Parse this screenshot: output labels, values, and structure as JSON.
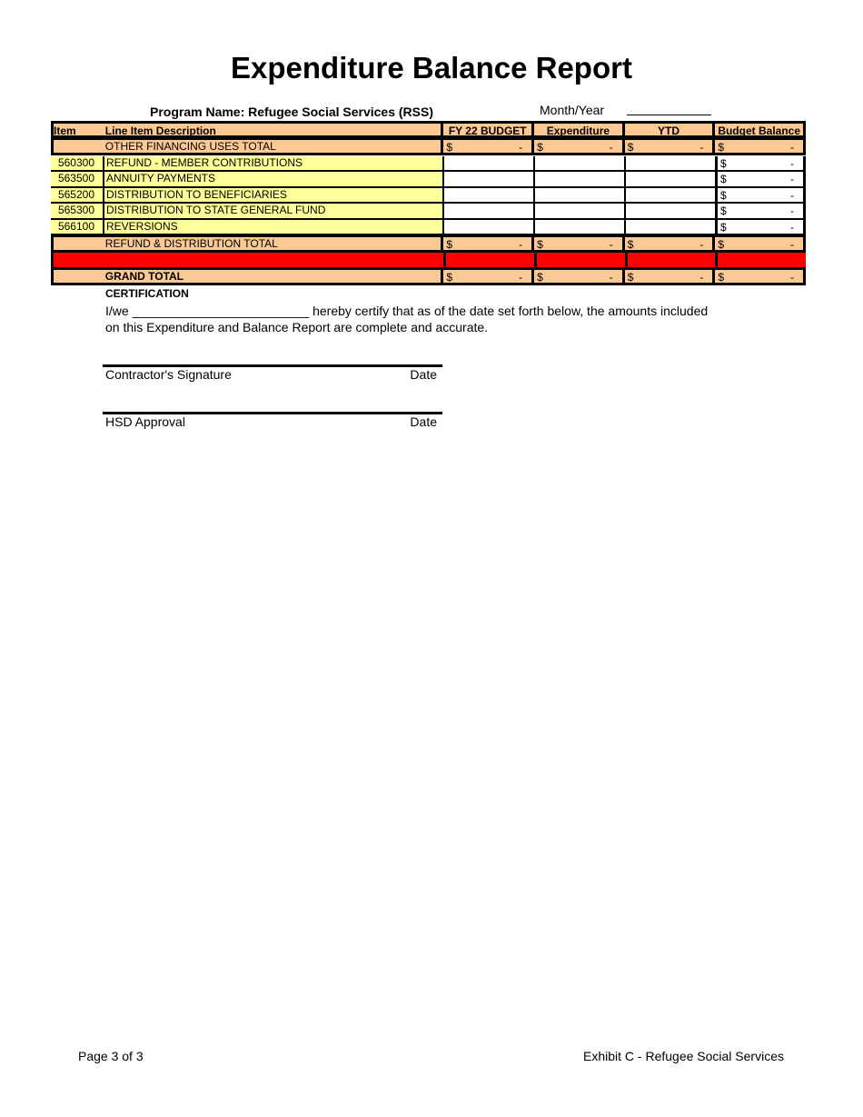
{
  "title": "Expenditure Balance Report",
  "program_name": "Program Name: Refugee Social Services (RSS)",
  "month_year_label": "Month/Year",
  "table": {
    "headers": [
      "Item",
      "Line Item Description",
      "FY 22 BUDGET",
      "Expenditure",
      "YTD",
      "Budget Balance"
    ],
    "other_financing_total": {
      "label": "OTHER FINANCING USES TOTAL",
      "values": [
        "-",
        "-",
        "-",
        "-"
      ]
    },
    "line_items": [
      {
        "item": "560300",
        "description": "REFUND - MEMBER CONTRIBUTIONS",
        "budget_balance": "-"
      },
      {
        "item": "563500",
        "description": "ANNUITY PAYMENTS",
        "budget_balance": "-"
      },
      {
        "item": "565200",
        "description": "DISTRIBUTION TO BENEFICIARIES",
        "budget_balance": "-"
      },
      {
        "item": "565300",
        "description": "DISTRIBUTION TO STATE GENERAL FUND",
        "budget_balance": "-"
      },
      {
        "item": "566100",
        "description": "REVERSIONS",
        "budget_balance": "-"
      }
    ],
    "refund_total": {
      "label": "REFUND & DISTRIBUTION TOTAL",
      "values": [
        "-",
        "-",
        "-",
        "-"
      ]
    },
    "grand_total": {
      "label": "GRAND TOTAL",
      "values": [
        "-",
        "-",
        "-",
        "-"
      ]
    },
    "currency": "$"
  },
  "certification": {
    "heading": "CERTIFICATION",
    "line1": "I/we _________________________ hereby certify that as of the date set forth below, the amounts included",
    "line2": "on this Expenditure and Balance Report are complete and accurate."
  },
  "signatures": [
    {
      "label": "Contractor's Signature",
      "date": "Date"
    },
    {
      "label": "HSD Approval",
      "date": "Date"
    }
  ],
  "footer": {
    "page": "Page 3 of 3",
    "exhibit": "Exhibit C - Refugee Social Services"
  },
  "colors": {
    "header": "#fcc994",
    "line_item": "#ffff99",
    "separator": "#ff0000"
  }
}
